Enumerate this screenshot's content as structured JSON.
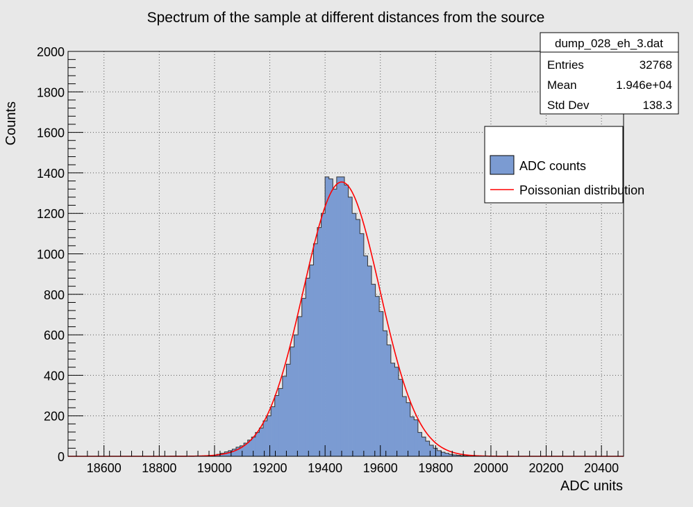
{
  "chart_data": {
    "type": "bar",
    "title": "Spectrum of the sample at different distances from the source",
    "xlabel": "ADC units",
    "ylabel": "Counts",
    "xlim": [
      18470,
      20480
    ],
    "ylim": [
      0,
      2000
    ],
    "x_ticks": [
      18600,
      18800,
      19000,
      19200,
      19400,
      19600,
      19800,
      20000,
      20200,
      20400
    ],
    "y_ticks": [
      0,
      200,
      400,
      600,
      800,
      1000,
      1200,
      1400,
      1600,
      1800,
      2000
    ],
    "grid": true,
    "histogram": {
      "name": "ADC counts",
      "color": "#7b9bd2",
      "bin_width": 14,
      "bins_start": [
        18980,
        18994,
        19008,
        19022,
        19036,
        19050,
        19064,
        19078,
        19092,
        19106,
        19120,
        19134,
        19148,
        19162,
        19176,
        19190,
        19204,
        19218,
        19232,
        19246,
        19260,
        19274,
        19288,
        19302,
        19316,
        19330,
        19344,
        19358,
        19372,
        19386,
        19400,
        19414,
        19428,
        19442,
        19456,
        19470,
        19484,
        19498,
        19512,
        19526,
        19540,
        19554,
        19568,
        19582,
        19596,
        19610,
        19624,
        19638,
        19652,
        19666,
        19680,
        19694,
        19708,
        19722,
        19736,
        19750,
        19764,
        19778,
        19792,
        19806,
        19820,
        19834,
        19848,
        19862,
        19876,
        19890,
        19904,
        19918
      ],
      "counts": [
        3,
        5,
        10,
        15,
        22,
        28,
        35,
        45,
        52,
        65,
        80,
        95,
        118,
        140,
        175,
        200,
        245,
        300,
        335,
        395,
        455,
        540,
        600,
        690,
        780,
        880,
        945,
        1050,
        1130,
        1200,
        1380,
        1370,
        1320,
        1380,
        1380,
        1340,
        1280,
        1200,
        1170,
        1100,
        990,
        940,
        850,
        790,
        715,
        620,
        550,
        460,
        440,
        380,
        295,
        265,
        195,
        180,
        118,
        95,
        75,
        55,
        40,
        28,
        20,
        15,
        10,
        7,
        5,
        3,
        2,
        1
      ]
    },
    "fit": {
      "name": "Poissonian distribution",
      "color": "#ff0000",
      "type": "gaussian",
      "mean": 19460,
      "sigma": 138.3,
      "peak": 1355
    },
    "legend": {
      "placement": "top-right",
      "entries": [
        "ADC counts",
        "Poissonian distribution"
      ]
    },
    "stats_box": {
      "title": "dump_028_eh_3.dat",
      "rows": [
        {
          "label": "Entries",
          "value": "32768"
        },
        {
          "label": "Mean",
          "value": "1.946e+04"
        },
        {
          "label": "Std Dev",
          "value": "138.3"
        }
      ]
    }
  }
}
